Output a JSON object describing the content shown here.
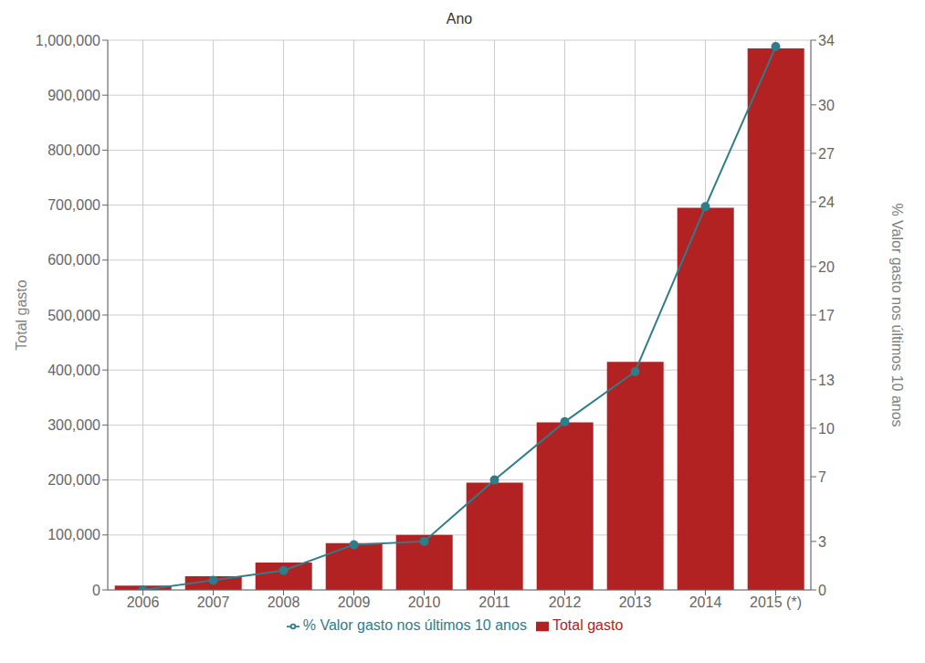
{
  "chart_data": {
    "type": "bar",
    "title": "Ano",
    "categories": [
      "2006",
      "2007",
      "2008",
      "2009",
      "2010",
      "2011",
      "2012",
      "2013",
      "2014",
      "2015 (*)"
    ],
    "y_label": "Total gasto",
    "y2_label": "% Valor gasto nos últimos 10 anos",
    "series": [
      {
        "name": "Total gasto",
        "type": "bar",
        "color": "#b22222",
        "values": [
          8000,
          25000,
          50000,
          85000,
          100000,
          195000,
          305000,
          415000,
          695000,
          985000
        ]
      },
      {
        "name": "% Valor gasto nos últimos 10 anos",
        "type": "line",
        "axis": "y2",
        "color": "#2e7d8a",
        "marker": "circle",
        "values": [
          0.0,
          0.6,
          1.2,
          2.8,
          3.0,
          6.8,
          10.4,
          13.5,
          23.7,
          33.6
        ]
      }
    ],
    "ylim": [
      0,
      1000000
    ],
    "yticks": [
      0,
      {
        "value": 100000,
        "label": "100,000"
      },
      {
        "value": 200000,
        "label": "200,000"
      },
      {
        "value": 300000,
        "label": "300,000"
      },
      {
        "value": 400000,
        "label": "400,000"
      },
      {
        "value": 500000,
        "label": "500,000"
      },
      {
        "value": 600000,
        "label": "600,000"
      },
      {
        "value": 700000,
        "label": "700,000"
      },
      {
        "value": 800000,
        "label": "800,000"
      },
      {
        "value": 900000,
        "label": "900,000"
      },
      {
        "value": 1000000,
        "label": "1,000,000"
      }
    ],
    "y2lim": [
      0,
      34
    ],
    "y2ticks": [
      0,
      3,
      7,
      10,
      13,
      17,
      20,
      24,
      27,
      30,
      34
    ],
    "grid": true,
    "legend": "bottom"
  }
}
